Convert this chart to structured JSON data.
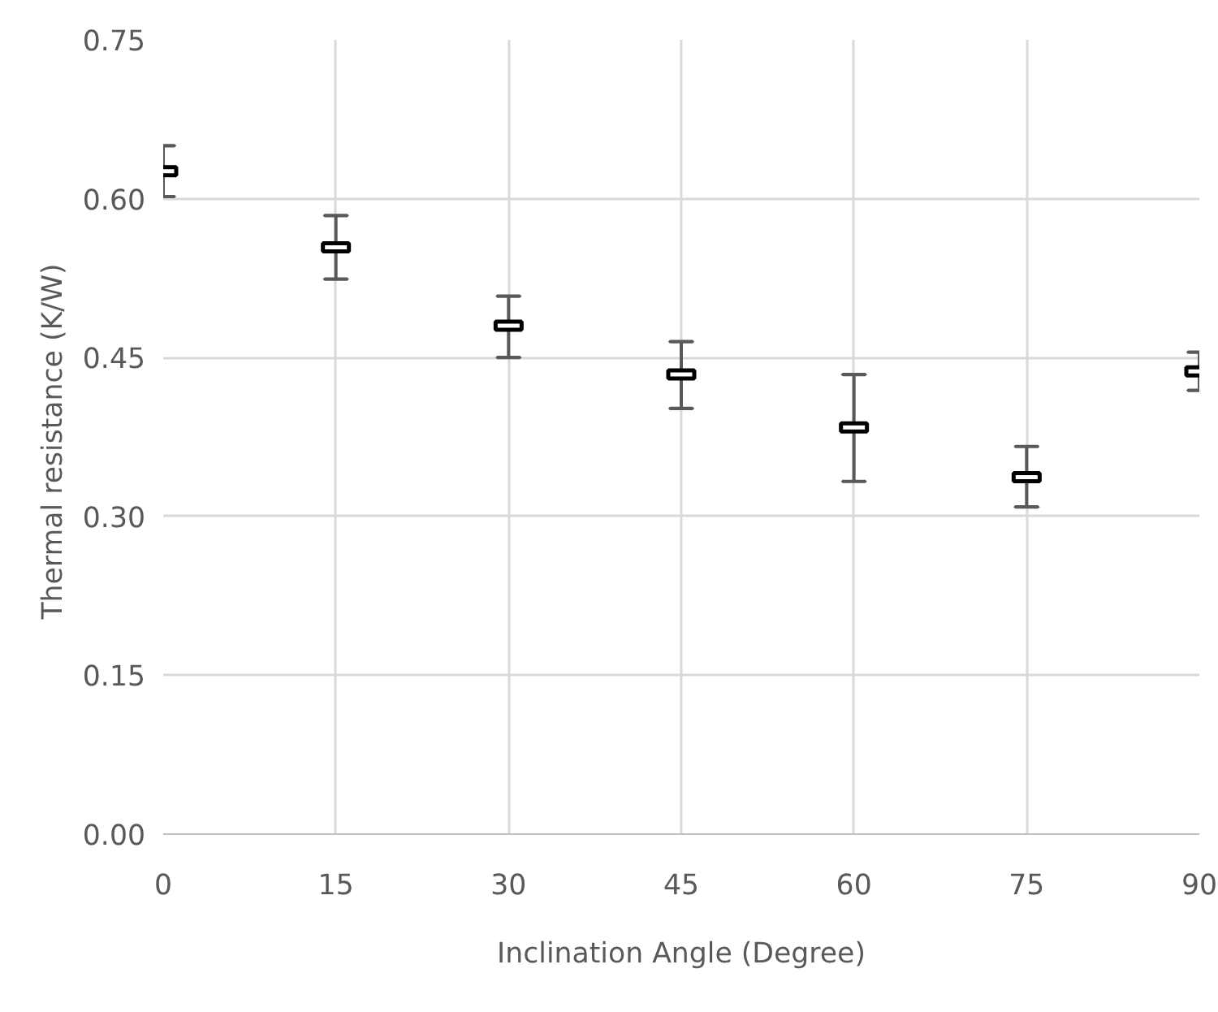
{
  "chart_data": {
    "type": "scatter",
    "x": [
      0,
      15,
      30,
      45,
      60,
      75,
      90
    ],
    "series": [
      {
        "color": "#000000",
        "values": [
          0.626,
          0.554,
          0.48,
          0.434,
          0.384,
          0.337,
          0.437
        ],
        "errors": [
          [
            0.602,
            0.65
          ],
          [
            0.524,
            0.584
          ],
          [
            0.45,
            0.508
          ],
          [
            0.402,
            0.465
          ],
          [
            0.333,
            0.434
          ],
          [
            0.309,
            0.366
          ],
          [
            0.419,
            0.455
          ]
        ]
      }
    ],
    "xlabel": "Inclination Angle (Degree)",
    "ylabel": "Thermal resistance  (K/W)",
    "xlim": [
      0,
      90
    ],
    "xticks": [
      0,
      15,
      30,
      45,
      60,
      75,
      90
    ],
    "ylim": [
      0,
      0.75
    ],
    "yticks": [
      {
        "value": 0,
        "label": "0.00"
      },
      {
        "value": 0.15,
        "label": "0.15"
      },
      {
        "value": 0.3,
        "label": "0.30"
      },
      {
        "value": 0.45,
        "label": "0.45"
      },
      {
        "value": 0.6,
        "label": "0.60"
      },
      {
        "value": 0.75,
        "label": "0.75"
      }
    ],
    "grid": true,
    "marker": "square"
  }
}
